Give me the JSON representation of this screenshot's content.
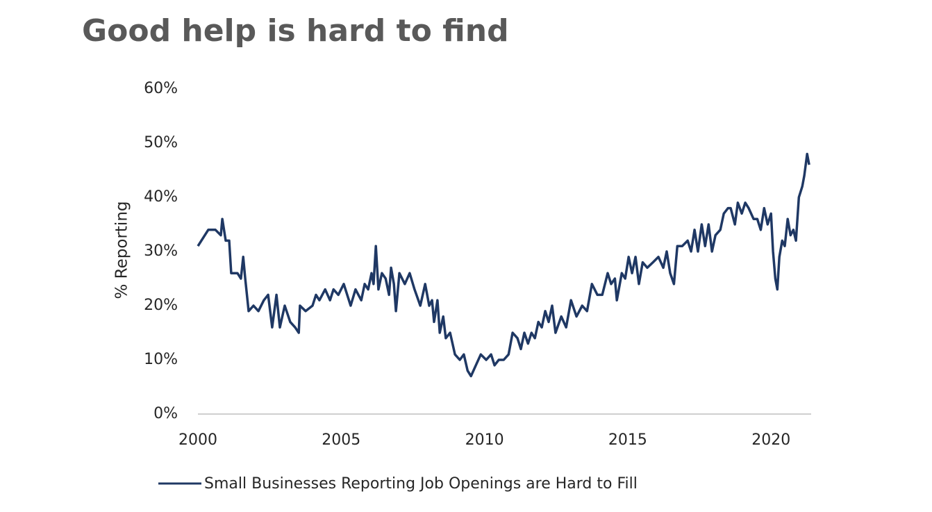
{
  "chart_data": {
    "type": "line",
    "title": "Good help is hard to find",
    "y_label": "% Reporting",
    "xlim": [
      2000,
      2021.4
    ],
    "xticks": [
      2000,
      2005,
      2010,
      2015,
      2020
    ],
    "ylim": [
      0,
      60
    ],
    "yticks": [
      {
        "value": 0,
        "label": "0%"
      },
      {
        "value": 10,
        "label": "10%"
      },
      {
        "value": 20,
        "label": "20%"
      },
      {
        "value": 30,
        "label": "30%"
      },
      {
        "value": 40,
        "label": "40%"
      },
      {
        "value": 50,
        "label": "50%"
      },
      {
        "value": 60,
        "label": "60%"
      }
    ],
    "grid": false,
    "legend": "bottom",
    "x": [
      2000.0,
      2000.36,
      2000.61,
      2000.8,
      2000.85,
      2000.97,
      2001.09,
      2001.16,
      2001.38,
      2001.5,
      2001.58,
      2001.65,
      2001.77,
      2001.94,
      2002.11,
      2002.3,
      2002.45,
      2002.59,
      2002.74,
      2002.86,
      2003.03,
      2003.22,
      2003.39,
      2003.52,
      2003.56,
      2003.76,
      2004.0,
      2004.12,
      2004.24,
      2004.44,
      2004.61,
      2004.73,
      2004.9,
      2005.09,
      2005.33,
      2005.5,
      2005.7,
      2005.82,
      2005.94,
      2006.06,
      2006.13,
      2006.21,
      2006.3,
      2006.42,
      2006.55,
      2006.67,
      2006.74,
      2006.84,
      2006.91,
      2007.03,
      2007.22,
      2007.39,
      2007.56,
      2007.76,
      2007.93,
      2008.07,
      2008.17,
      2008.24,
      2008.36,
      2008.44,
      2008.56,
      2008.65,
      2008.8,
      2008.97,
      2009.14,
      2009.28,
      2009.41,
      2009.53,
      2009.7,
      2009.87,
      2010.06,
      2010.23,
      2010.35,
      2010.5,
      2010.67,
      2010.84,
      2010.98,
      2011.15,
      2011.27,
      2011.39,
      2011.52,
      2011.64,
      2011.76,
      2011.88,
      2012.0,
      2012.12,
      2012.24,
      2012.36,
      2012.48,
      2012.68,
      2012.85,
      2013.02,
      2013.21,
      2013.41,
      2013.58,
      2013.75,
      2013.94,
      2014.11,
      2014.3,
      2014.42,
      2014.55,
      2014.62,
      2014.79,
      2014.91,
      2015.03,
      2015.15,
      2015.27,
      2015.39,
      2015.52,
      2015.68,
      2015.88,
      2016.07,
      2016.24,
      2016.36,
      2016.48,
      2016.61,
      2016.73,
      2016.9,
      2017.09,
      2017.21,
      2017.33,
      2017.45,
      2017.58,
      2017.7,
      2017.82,
      2017.94,
      2018.06,
      2018.23,
      2018.35,
      2018.5,
      2018.59,
      2018.74,
      2018.84,
      2018.98,
      2019.1,
      2019.22,
      2019.39,
      2019.52,
      2019.64,
      2019.76,
      2019.88,
      2020.0,
      2020.07,
      2020.15,
      2020.22,
      2020.29,
      2020.39,
      2020.48,
      2020.58,
      2020.68,
      2020.78,
      2020.87,
      2020.97,
      2021.09,
      2021.16,
      2021.26,
      2021.33
    ],
    "series": [
      {
        "name": "Small Businesses Reporting Job Openings are Hard to Fill",
        "color": "#1f3864",
        "values": [
          31,
          34,
          34,
          33,
          36,
          32,
          32,
          26,
          26,
          25,
          29,
          25,
          19,
          20,
          19,
          21,
          22,
          16,
          22,
          16,
          20,
          17,
          16,
          15,
          20,
          19,
          20,
          22,
          21,
          23,
          21,
          23,
          22,
          24,
          20,
          23,
          21,
          24,
          23,
          26,
          24,
          31,
          23,
          26,
          25,
          22,
          27,
          24,
          19,
          26,
          24,
          26,
          23,
          20,
          24,
          20,
          21,
          17,
          21,
          15,
          18,
          14,
          15,
          11,
          10,
          11,
          8,
          7,
          9,
          11,
          10,
          11,
          9,
          10,
          10,
          11,
          15,
          14,
          12,
          15,
          13,
          15,
          14,
          17,
          16,
          19,
          17,
          20,
          15,
          18,
          16,
          21,
          18,
          20,
          19,
          24,
          22,
          22,
          26,
          24,
          25,
          21,
          26,
          25,
          29,
          26,
          29,
          24,
          28,
          27,
          28,
          29,
          27,
          30,
          26,
          24,
          31,
          31,
          32,
          30,
          34,
          30,
          35,
          31,
          35,
          30,
          33,
          34,
          37,
          38,
          38,
          35,
          39,
          37,
          39,
          38,
          36,
          36,
          34,
          38,
          35,
          37,
          30,
          25,
          23,
          29,
          32,
          31,
          36,
          33,
          34,
          32,
          40,
          42,
          44,
          48,
          46
        ]
      }
    ]
  }
}
